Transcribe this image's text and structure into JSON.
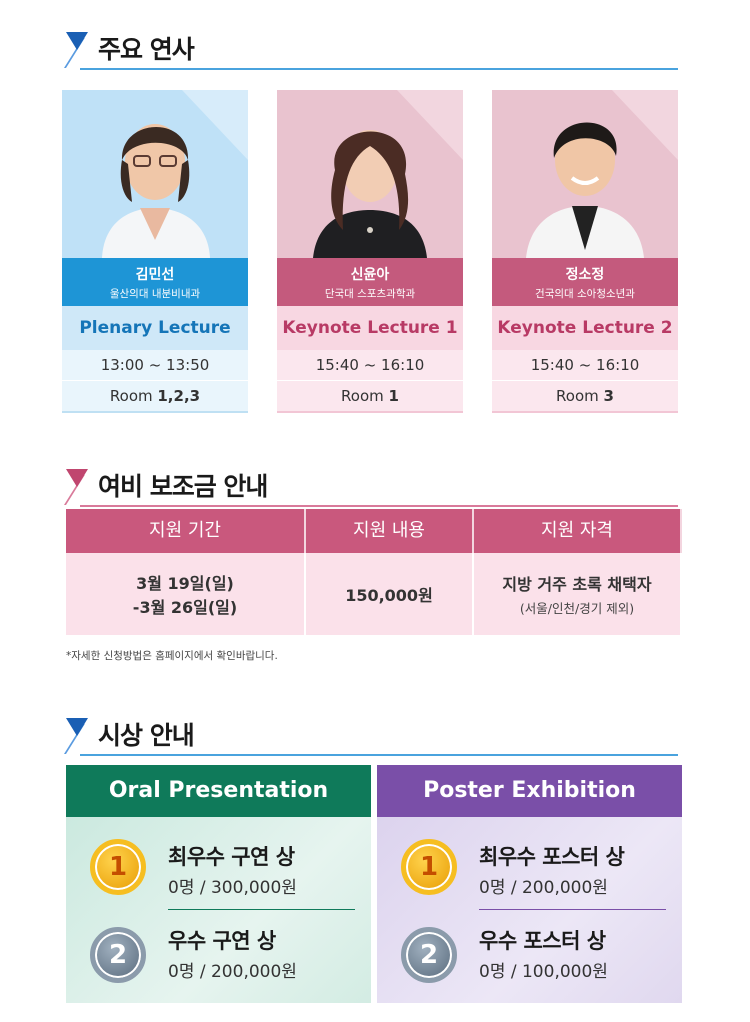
{
  "sections": {
    "speakers_title": "주요 연사",
    "subsidy_title": "여비 보조금 안내",
    "awards_title": "시상 안내"
  },
  "speakers": [
    {
      "name": "김민선",
      "affiliation": "울산의대 내분비내과",
      "lecture": "Plenary Lecture",
      "time": "13:00 ~ 13:50",
      "room_prefix": "Room ",
      "room": "1,2,3"
    },
    {
      "name": "신윤아",
      "affiliation": "단국대 스포츠과학과",
      "lecture": "Keynote Lecture 1",
      "time": "15:40 ~ 16:10",
      "room_prefix": "Room ",
      "room": "1"
    },
    {
      "name": "정소정",
      "affiliation": "건국의대 소아청소년과",
      "lecture": "Keynote Lecture 2",
      "time": "15:40 ~ 16:10",
      "room_prefix": "Room ",
      "room": "3"
    }
  ],
  "subsidy": {
    "headers": [
      "지원 기간",
      "지원 내용",
      "지원 자격"
    ],
    "period_line1": "3월 19일(일)",
    "period_line2": "-3월 26일(일)",
    "amount": "150,000원",
    "qualification": "지방 거주 초록 채택자",
    "qualification_note": "(서울/인천/경기 제외)",
    "note": "*자세한 신청방법은 홈페이지에서 확인바랍니다."
  },
  "awards": {
    "oral": {
      "header": "Oral Presentation",
      "items": [
        {
          "rank": "1",
          "title": "최우수 구연 상",
          "value": "0명 / 300,000원"
        },
        {
          "rank": "2",
          "title": "우수 구연 상",
          "value": "0명 / 200,000원"
        }
      ]
    },
    "poster": {
      "header": "Poster Exhibition",
      "items": [
        {
          "rank": "1",
          "title": "최우수 포스터 상",
          "value": "0명 / 200,000원"
        },
        {
          "rank": "2",
          "title": "우수 포스터 상",
          "value": "0명 / 100,000원"
        }
      ]
    }
  },
  "colors": {
    "blue_accent": "#1e95d6",
    "pink_accent": "#c45a7d",
    "oral_green": "#0f7a5a",
    "poster_purple": "#7a4fa8"
  }
}
